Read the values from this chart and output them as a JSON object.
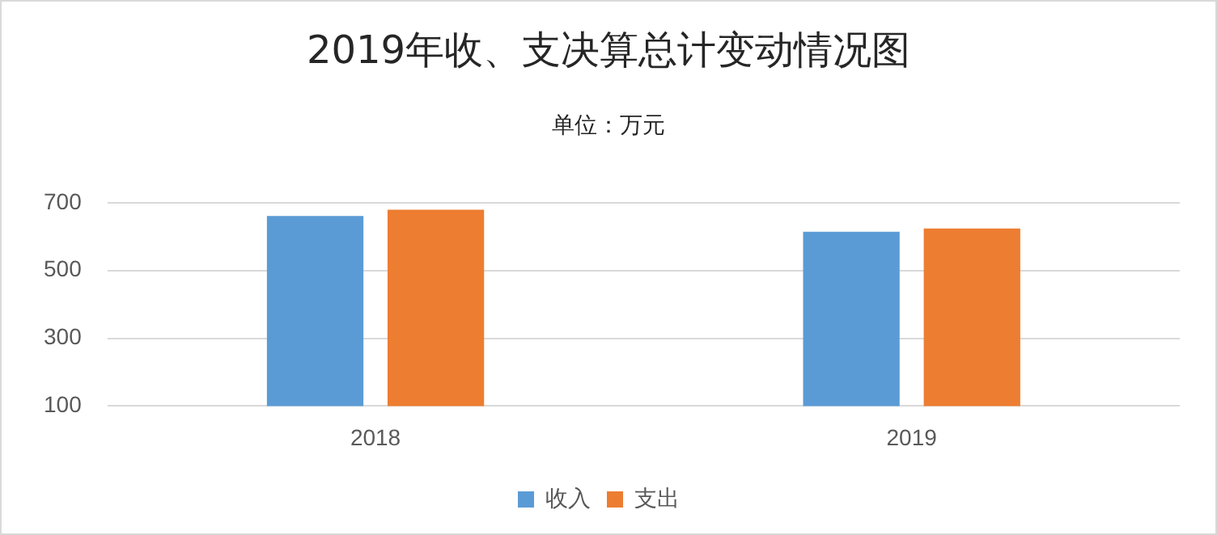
{
  "chart_data": {
    "type": "bar",
    "title": "2019年收、支决算总计变动情况图",
    "subtitle": "单位：万元",
    "categories": [
      "2018",
      "2019"
    ],
    "series": [
      {
        "name": "收入",
        "color": "#5b9bd5",
        "values": [
          661,
          614
        ]
      },
      {
        "name": "支出",
        "color": "#ed7d31",
        "values": [
          679,
          624
        ]
      }
    ],
    "ylim": [
      100,
      700
    ],
    "yticks": [
      100,
      300,
      500,
      700
    ],
    "grid": "y",
    "legend": "bottom"
  }
}
